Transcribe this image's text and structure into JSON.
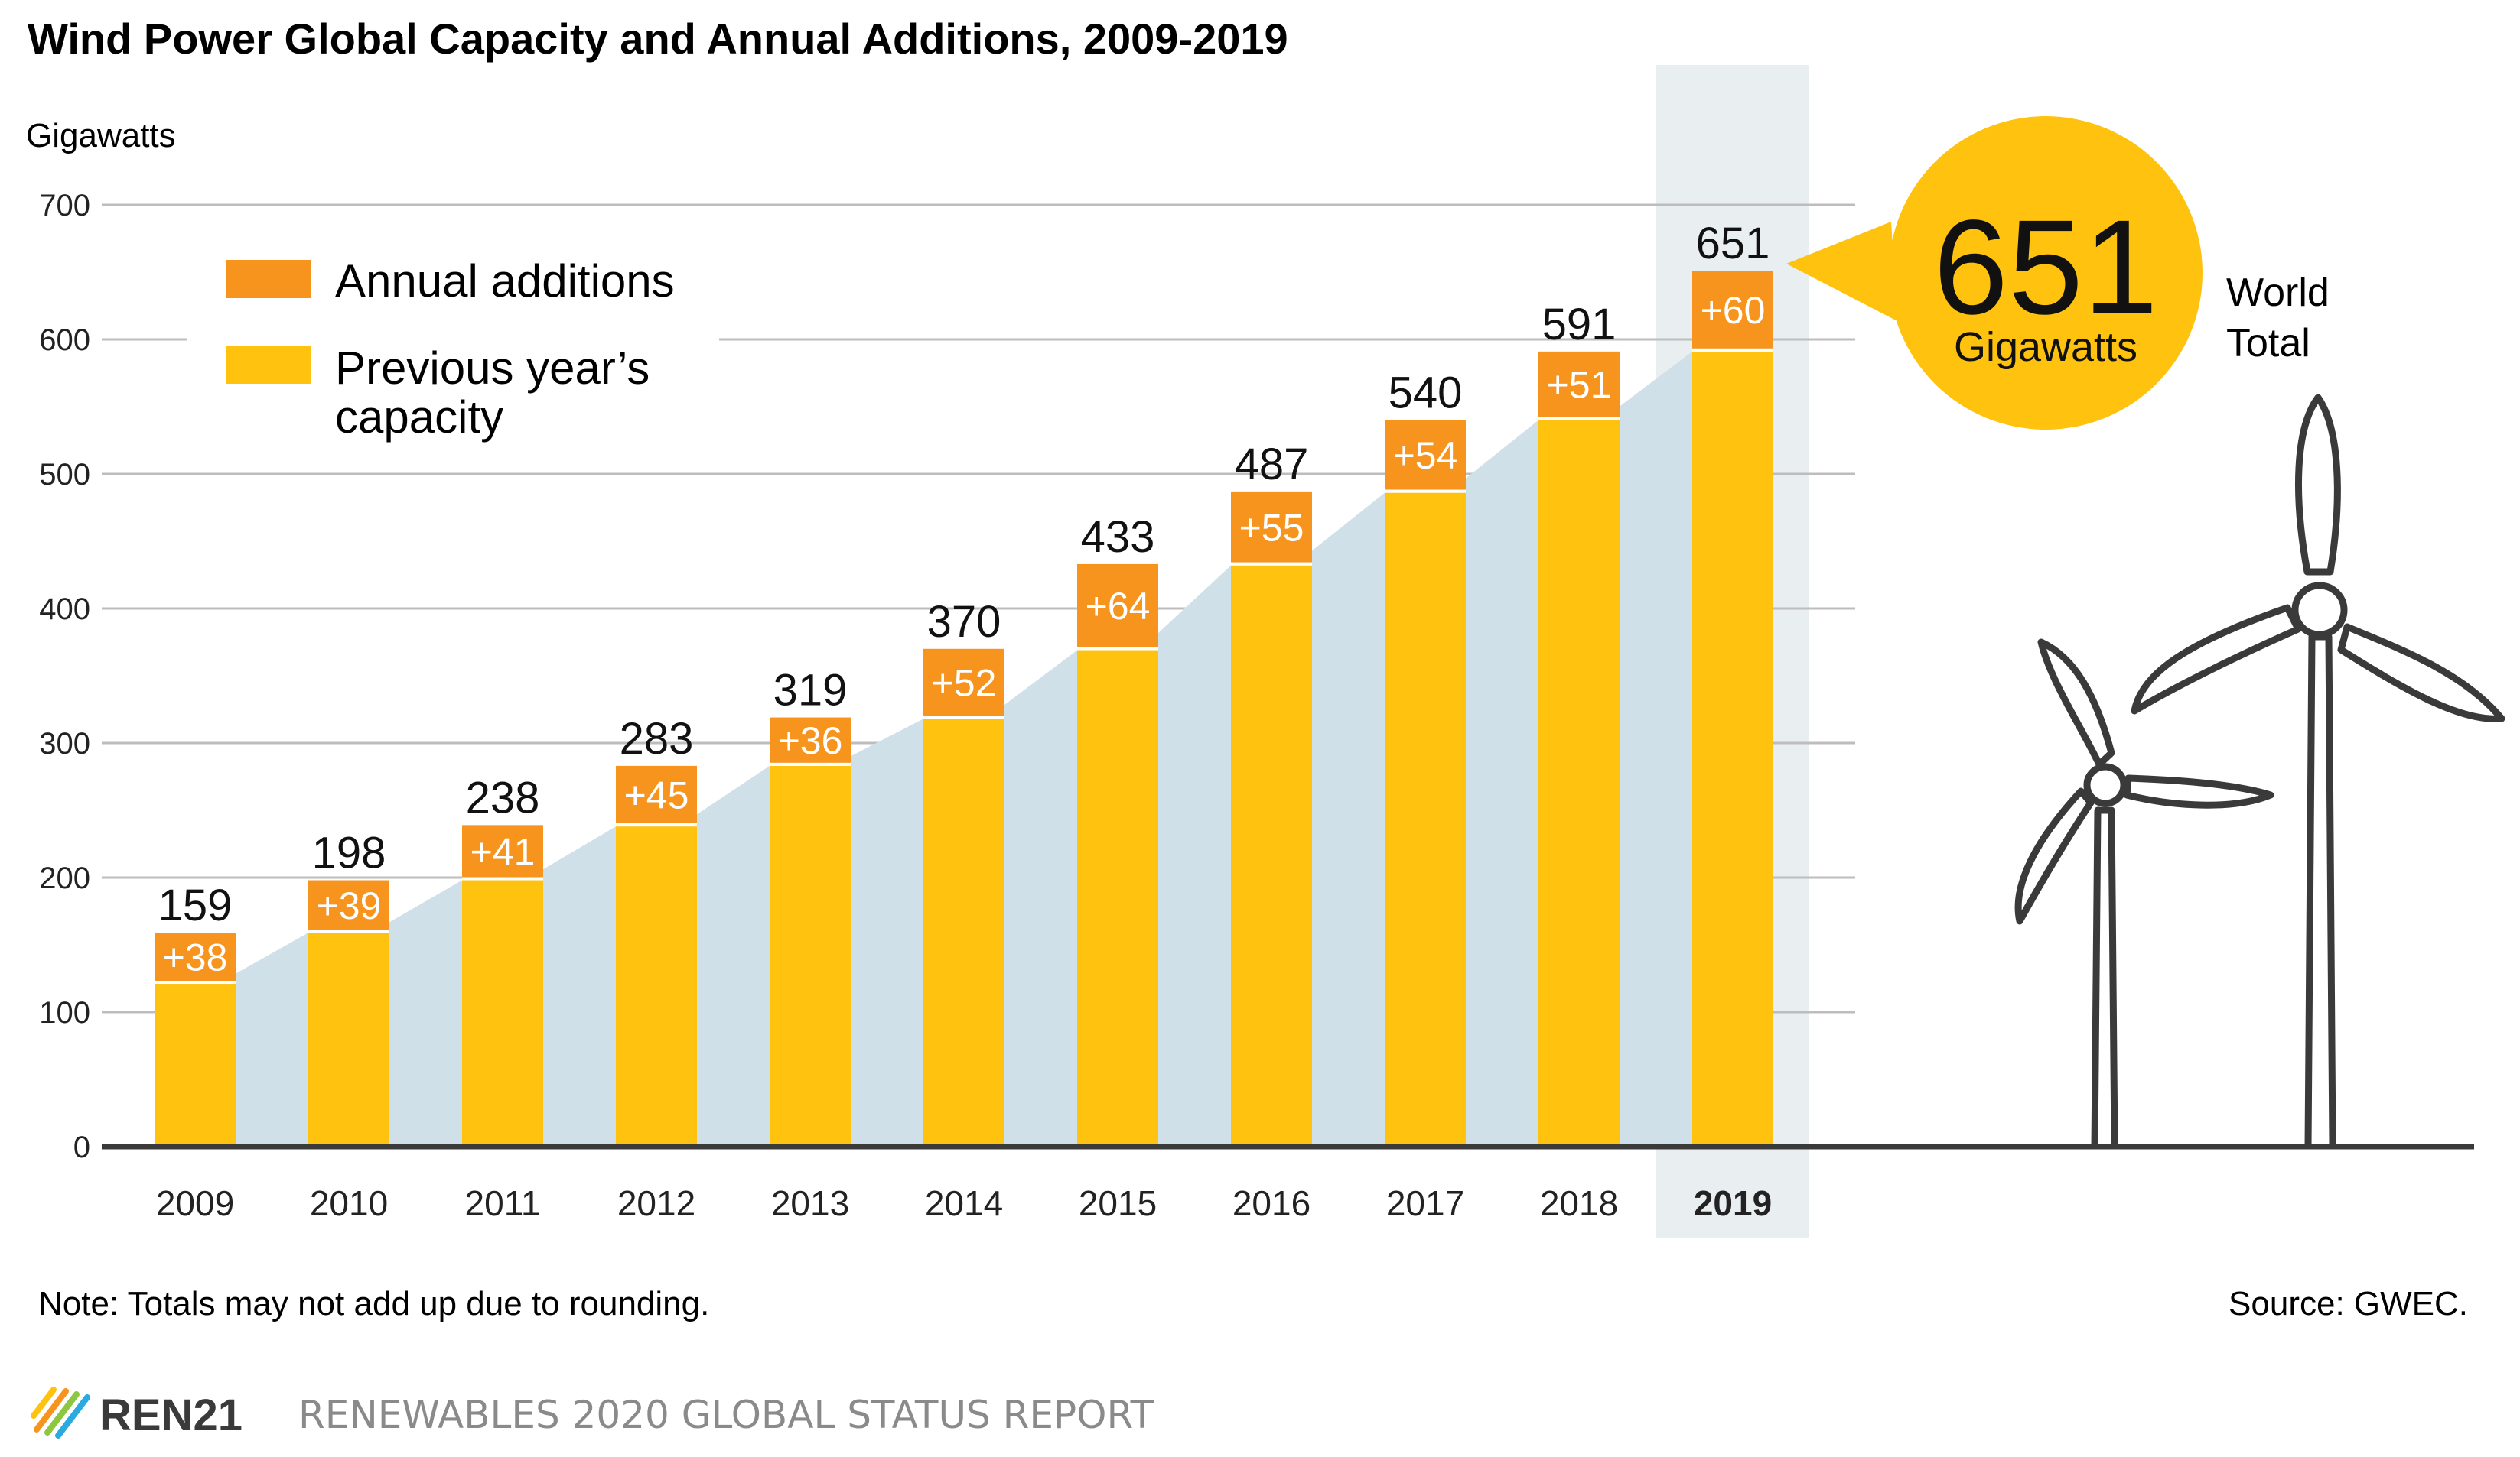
{
  "chart_data": {
    "type": "bar",
    "title": "Wind Power Global Capacity and Annual Additions, 2009-2019",
    "ylabel": "Gigawatts",
    "ylim": [
      0,
      700
    ],
    "yticks": [
      "0",
      "100",
      "200",
      "300",
      "400",
      "500",
      "600",
      "700"
    ],
    "categories": [
      "2009",
      "2010",
      "2011",
      "2012",
      "2013",
      "2014",
      "2015",
      "2016",
      "2017",
      "2018",
      "2019"
    ],
    "highlight_category": "2019",
    "series": [
      {
        "name": "Previous year’s capacity",
        "color": "#ffc20e",
        "values": [
          121,
          159,
          198,
          238,
          283,
          318,
          369,
          432,
          486,
          540,
          591
        ]
      },
      {
        "name": "Annual additions",
        "color": "#f7941d",
        "values": [
          38,
          39,
          41,
          45,
          36,
          52,
          64,
          55,
          54,
          51,
          60
        ]
      }
    ],
    "totals": [
      "159",
      "198",
      "238",
      "283",
      "319",
      "370",
      "433",
      "487",
      "540",
      "591",
      "651"
    ],
    "addition_labels": [
      "+38",
      "+39",
      "+41",
      "+45",
      "+36",
      "+52",
      "+64",
      "+55",
      "+54",
      "+51",
      "+60"
    ],
    "legend": {
      "additions_label": "Annual additions",
      "previous_line1": "Previous year’s",
      "previous_line2": "capacity"
    },
    "callout": {
      "value": "651",
      "unit": "Gigawatts",
      "world_line1": "World",
      "world_line2": "Total"
    }
  },
  "footer": {
    "note": "Note: Totals may not add up due to rounding.",
    "source": "Source: GWEC.",
    "brand": "REN21",
    "report": "RENEWABLES 2020 GLOBAL STATUS REPORT"
  },
  "colors": {
    "previous": "#ffc20e",
    "additions": "#f7941d",
    "area": "#cfe0e8",
    "highlight": "#e9eef1",
    "grid": "#bdbdbd",
    "callout": "#ffc20e",
    "turbine": "#3a3a3a"
  }
}
